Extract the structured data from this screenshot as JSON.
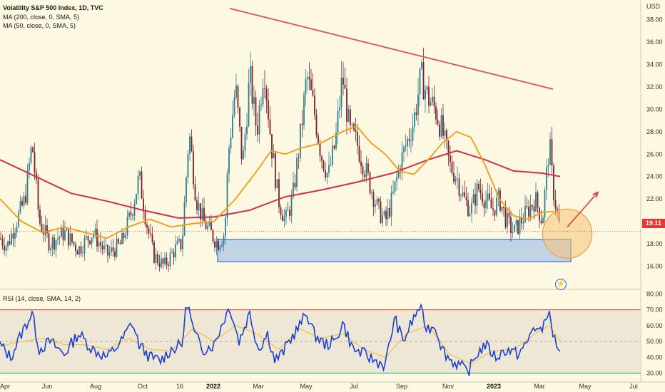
{
  "legend": {
    "title": "Volatility S&P 500 Index, 1D, TVC",
    "ma200": "MA (200, close, 0, SMA, 5)",
    "ma50": "MA (50, close, 0, SMA, 5)",
    "rsi": "RSI (14, close, SMA, 14, 2)"
  },
  "price_tag": "19.11",
  "icons": {
    "event": "lightning-icon"
  },
  "colors": {
    "background": "#fdf8e1",
    "up": "#2e7d8f",
    "down": "#7a1f2b",
    "ma200": "#d32f4a",
    "ma50": "#f39c12",
    "trendline": "#e05060",
    "support_box": "#8fb4e8",
    "circle": "#f6c27a",
    "rsi": "#1a3fcf",
    "rsi_ma": "#f0c050"
  },
  "chart_data": [
    {
      "type": "candlestick",
      "title": "Volatility S&P 500 Index, 1D, TVC",
      "unit": "USD",
      "y_ticks": [
        16.0,
        18.0,
        20.0,
        22.0,
        24.0,
        26.0,
        28.0,
        30.0,
        32.0,
        34.0,
        36.0,
        38.0
      ],
      "ylim": [
        14.0,
        39.5
      ],
      "x_ticks": [
        "Apr",
        "Jun",
        "Aug",
        "Oct",
        "16",
        "2022",
        "Mar",
        "May",
        "Jul",
        "Sep",
        "Nov",
        "2023",
        "Mar",
        "May",
        "Jul"
      ],
      "last_price": 19.11,
      "close_path": [
        [
          0,
          18.5
        ],
        [
          10,
          17.8
        ],
        [
          20,
          19.5
        ],
        [
          35,
          22
        ],
        [
          45,
          27
        ],
        [
          55,
          20
        ],
        [
          70,
          18
        ],
        [
          90,
          19
        ],
        [
          110,
          17.5
        ],
        [
          130,
          19
        ],
        [
          150,
          17
        ],
        [
          170,
          18
        ],
        [
          185,
          21
        ],
        [
          195,
          24
        ],
        [
          205,
          20
        ],
        [
          215,
          17
        ],
        [
          230,
          16
        ],
        [
          245,
          17.5
        ],
        [
          255,
          18
        ],
        [
          265,
          28
        ],
        [
          275,
          22
        ],
        [
          285,
          20
        ],
        [
          295,
          19
        ],
        [
          305,
          18
        ],
        [
          315,
          19
        ],
        [
          320,
          26
        ],
        [
          330,
          32
        ],
        [
          340,
          25
        ],
        [
          350,
          33
        ],
        [
          360,
          28
        ],
        [
          370,
          34
        ],
        [
          380,
          27
        ],
        [
          390,
          22
        ],
        [
          400,
          20
        ],
        [
          410,
          22
        ],
        [
          420,
          27
        ],
        [
          430,
          33
        ],
        [
          440,
          30
        ],
        [
          450,
          26
        ],
        [
          460,
          24
        ],
        [
          470,
          27
        ],
        [
          480,
          33
        ],
        [
          490,
          28
        ],
        [
          500,
          27
        ],
        [
          510,
          25
        ],
        [
          520,
          23
        ],
        [
          530,
          21
        ],
        [
          540,
          20
        ],
        [
          550,
          22
        ],
        [
          560,
          25
        ],
        [
          570,
          27
        ],
        [
          580,
          29
        ],
        [
          590,
          33
        ],
        [
          600,
          31
        ],
        [
          610,
          30
        ],
        [
          620,
          28
        ],
        [
          630,
          25
        ],
        [
          640,
          24
        ],
        [
          650,
          22
        ],
        [
          660,
          21
        ],
        [
          670,
          23
        ],
        [
          680,
          22
        ],
        [
          690,
          21
        ],
        [
          700,
          22
        ],
        [
          710,
          20
        ],
        [
          720,
          19
        ],
        [
          730,
          20
        ],
        [
          740,
          21
        ],
        [
          750,
          22
        ],
        [
          760,
          20
        ],
        [
          770,
          27
        ],
        [
          775,
          23
        ],
        [
          780,
          21
        ],
        [
          785,
          19.1
        ]
      ],
      "ma200_path": [
        [
          0,
          25.5
        ],
        [
          50,
          24
        ],
        [
          100,
          22.5
        ],
        [
          150,
          21.8
        ],
        [
          200,
          21
        ],
        [
          250,
          20.3
        ],
        [
          300,
          20.4
        ],
        [
          350,
          21
        ],
        [
          400,
          22.2
        ],
        [
          450,
          22.8
        ],
        [
          500,
          23.5
        ],
        [
          550,
          24.3
        ],
        [
          600,
          25.5
        ],
        [
          640,
          26.3
        ],
        [
          680,
          25.5
        ],
        [
          720,
          24.5
        ],
        [
          760,
          24.3
        ],
        [
          785,
          24.0
        ]
      ],
      "ma50_path": [
        [
          0,
          22
        ],
        [
          30,
          20
        ],
        [
          60,
          19
        ],
        [
          90,
          19.5
        ],
        [
          120,
          19
        ],
        [
          150,
          18.5
        ],
        [
          180,
          19.5
        ],
        [
          210,
          20.2
        ],
        [
          240,
          19.5
        ],
        [
          270,
          19.8
        ],
        [
          300,
          20
        ],
        [
          330,
          22
        ],
        [
          360,
          24.5
        ],
        [
          380,
          26.3
        ],
        [
          400,
          26
        ],
        [
          420,
          26.5
        ],
        [
          450,
          27
        ],
        [
          480,
          28
        ],
        [
          500,
          28.5
        ],
        [
          520,
          27
        ],
        [
          540,
          26
        ],
        [
          560,
          24.5
        ],
        [
          580,
          24.2
        ],
        [
          600,
          25.5
        ],
        [
          620,
          27
        ],
        [
          640,
          28
        ],
        [
          660,
          27.5
        ],
        [
          680,
          25
        ],
        [
          700,
          22
        ],
        [
          720,
          20.5
        ],
        [
          740,
          20.2
        ],
        [
          760,
          20.8
        ],
        [
          775,
          20.9
        ],
        [
          785,
          20.5
        ]
      ],
      "trendline": [
        [
          322,
          39.0
        ],
        [
          775,
          31.8
        ]
      ],
      "support_zone": {
        "x_start": 305,
        "x_end": 800,
        "y_low": 16.4,
        "y_high": 18.4
      },
      "projection": [
        [
          795,
          19.5
        ],
        [
          838,
          22.6
        ]
      ],
      "highlight_circle": {
        "x": 795,
        "y": 18.9,
        "r_data": 2.2
      }
    },
    {
      "type": "line",
      "title": "RSI (14, close, SMA, 14, 2)",
      "y_ticks": [
        30.0,
        40.0,
        50.0,
        60.0,
        70.0,
        80.0
      ],
      "ylim": [
        28,
        82
      ],
      "bands": {
        "upper": 70,
        "mid": 50,
        "lower": 30
      },
      "rsi_path": [
        [
          0,
          48
        ],
        [
          15,
          40
        ],
        [
          30,
          55
        ],
        [
          45,
          68
        ],
        [
          55,
          45
        ],
        [
          70,
          50
        ],
        [
          90,
          42
        ],
        [
          110,
          55
        ],
        [
          130,
          45
        ],
        [
          150,
          40
        ],
        [
          170,
          50
        ],
        [
          185,
          62
        ],
        [
          195,
          48
        ],
        [
          210,
          40
        ],
        [
          225,
          38
        ],
        [
          240,
          45
        ],
        [
          255,
          48
        ],
        [
          262,
          76
        ],
        [
          272,
          55
        ],
        [
          285,
          45
        ],
        [
          300,
          48
        ],
        [
          312,
          62
        ],
        [
          322,
          72
        ],
        [
          335,
          50
        ],
        [
          350,
          68
        ],
        [
          362,
          45
        ],
        [
          375,
          55
        ],
        [
          385,
          38
        ],
        [
          395,
          42
        ],
        [
          405,
          50
        ],
        [
          420,
          60
        ],
        [
          430,
          68
        ],
        [
          440,
          55
        ],
        [
          455,
          48
        ],
        [
          470,
          50
        ],
        [
          480,
          62
        ],
        [
          495,
          45
        ],
        [
          510,
          42
        ],
        [
          525,
          38
        ],
        [
          540,
          35
        ],
        [
          553,
          65
        ],
        [
          565,
          50
        ],
        [
          575,
          60
        ],
        [
          588,
          72
        ],
        [
          598,
          58
        ],
        [
          610,
          60
        ],
        [
          620,
          45
        ],
        [
          632,
          38
        ],
        [
          645,
          35
        ],
        [
          655,
          30
        ],
        [
          668,
          42
        ],
        [
          680,
          48
        ],
        [
          695,
          40
        ],
        [
          710,
          45
        ],
        [
          725,
          42
        ],
        [
          738,
          48
        ],
        [
          748,
          60
        ],
        [
          758,
          55
        ],
        [
          768,
          70
        ],
        [
          775,
          55
        ],
        [
          780,
          48
        ],
        [
          786,
          43
        ]
      ],
      "rsi_ma_path": [
        [
          0,
          47
        ],
        [
          30,
          50
        ],
        [
          60,
          52
        ],
        [
          90,
          48
        ],
        [
          120,
          48
        ],
        [
          150,
          45
        ],
        [
          180,
          52
        ],
        [
          210,
          45
        ],
        [
          240,
          44
        ],
        [
          270,
          58
        ],
        [
          300,
          50
        ],
        [
          330,
          60
        ],
        [
          360,
          55
        ],
        [
          390,
          45
        ],
        [
          420,
          58
        ],
        [
          450,
          52
        ],
        [
          480,
          55
        ],
        [
          510,
          45
        ],
        [
          540,
          40
        ],
        [
          570,
          55
        ],
        [
          600,
          60
        ],
        [
          630,
          42
        ],
        [
          660,
          36
        ],
        [
          690,
          44
        ],
        [
          720,
          45
        ],
        [
          750,
          55
        ],
        [
          770,
          60
        ],
        [
          786,
          50
        ]
      ]
    }
  ]
}
